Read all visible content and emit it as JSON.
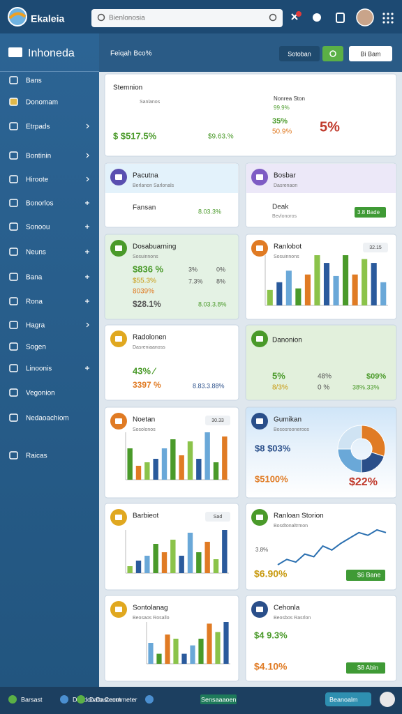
{
  "header": {
    "logo": "Ekaleia",
    "search": "Bienlonosia"
  },
  "sidebar": {
    "title": "Inhoneda",
    "items": [
      "Bans",
      "Donomam",
      "Etrpads",
      "Bontinin",
      "Hiroote",
      "Bonorlos",
      "Sonoou",
      "Neuns",
      "Bana",
      "Rona",
      "Hagra",
      "Sogen",
      "Linoonis",
      "Vegonion",
      "Nedaoachiom",
      "Raicas"
    ]
  },
  "toolbar": {
    "label": "Feiqah Bco%",
    "button1": "Sotoban",
    "button2": "Bi Bam"
  },
  "cards": [
    {
      "title": "Stemnion",
      "subtitle": "Sanlanos",
      "stats": [
        "$ $517.5%",
        "$9.63.%",
        "Nonrea Ston",
        "99.9%",
        "35%",
        "50.9%",
        "5%"
      ]
    },
    {
      "title": "Pacutna",
      "subtitle": "Berlanon Sarlonals",
      "stats": [
        "Fansan",
        "8.03.3%"
      ]
    },
    {
      "title": "Bosbar",
      "subtitle": "Dasrenaon",
      "stats": [
        "Deak",
        "Bevlonoros",
        "3.8 Bade"
      ]
    },
    {
      "title": "Dosabuarning",
      "subtitle": "Sosuinnons",
      "stats": [
        "$836 %",
        "3%",
        "0%",
        "$55.3%",
        "7.3%",
        "8%",
        "8039%",
        "$28.1%",
        "8.03.3.8%"
      ]
    },
    {
      "title": "Ranlobot",
      "subtitle": "Sosuinnons",
      "badge": "32.15",
      "bars": [
        20,
        30,
        45,
        22,
        40,
        65,
        55,
        38,
        65,
        40,
        60,
        55,
        30
      ]
    },
    {
      "title": "Radolonen",
      "subtitle": "Dasreniaanoss",
      "stats": [
        "43% ⁄",
        "3397 %",
        "8.83.3.88%"
      ]
    },
    {
      "title": "Danonion",
      "stats": [
        "5%",
        "48%",
        "$09%",
        "8/3%",
        "0 %",
        "38%.33%"
      ]
    },
    {
      "title": "Noetan",
      "subtitle": "Sosolonos",
      "badge": "30.33",
      "bars": [
        45,
        20,
        25,
        30,
        45,
        58,
        35,
        55,
        30,
        68,
        25,
        62
      ]
    },
    {
      "title": "Gumikan",
      "subtitle": "Bososrooneroos",
      "stats": [
        "$8 $03%",
        "$5100%",
        "$22%"
      ],
      "donut": [
        30,
        20,
        25,
        25
      ]
    },
    {
      "title": "Barbieot",
      "badge": "Sad",
      "bars": [
        10,
        18,
        25,
        42,
        30,
        48,
        25,
        58,
        30,
        45,
        20,
        62
      ]
    },
    {
      "title": "Ranloan Storion",
      "subtitle": "Bosdtonaltrmon",
      "stats": [
        "3.8%",
        "$6.90%",
        "$6 Bane"
      ],
      "line": [
        4,
        8,
        6,
        12,
        10,
        18,
        15,
        20,
        24,
        28,
        26,
        30,
        28
      ]
    },
    {
      "title": "Sontolanag",
      "subtitle": "Beosaos Rosallo",
      "bars": [
        25,
        12,
        35,
        30,
        12,
        22,
        30,
        48,
        38,
        50
      ]
    },
    {
      "title": "Cehonla",
      "subtitle": "Beosbos Rasrlon",
      "stats": [
        "$4 9.3%",
        "$4.10%",
        "$8 Abin"
      ]
    }
  ],
  "footer": {
    "items": [
      "Barsast",
      "Dasdon Dastecot",
      "Dato Cemnmeter",
      "Sensaaaoen",
      "Beanoalm"
    ]
  }
}
